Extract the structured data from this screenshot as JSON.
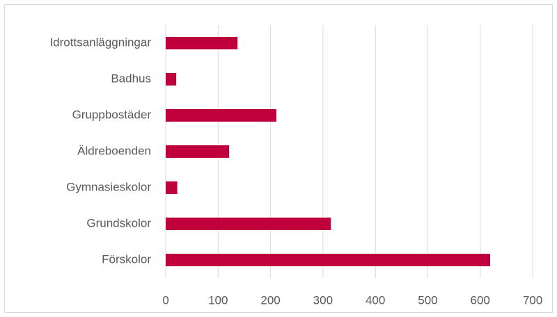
{
  "chart_data": {
    "type": "bar",
    "orientation": "horizontal",
    "categories": [
      "Idrottsanläggningar",
      "Badhus",
      "Gruppbostäder",
      "Äldreboenden",
      "Gymnasieskolor",
      "Grundskolor",
      "Förskolor"
    ],
    "values": [
      137,
      20,
      211,
      121,
      22,
      315,
      619
    ],
    "color": "#c0003c",
    "xlim": [
      0,
      700
    ],
    "xticks": [
      0,
      100,
      200,
      300,
      400,
      500,
      600,
      700
    ],
    "grid": true
  }
}
